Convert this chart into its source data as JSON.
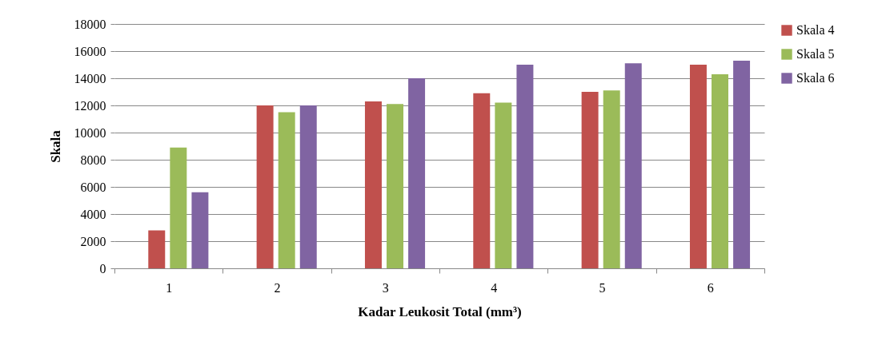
{
  "chart_data": {
    "type": "bar",
    "xlabel": "Kadar Leukosit Total (mm³)",
    "ylabel": "Skala",
    "categories": [
      "1",
      "2",
      "3",
      "4",
      "5",
      "6"
    ],
    "series": [
      {
        "name": "Skala 4",
        "color": "#c0504d",
        "values": [
          2800,
          12000,
          12300,
          12900,
          13000,
          15000
        ]
      },
      {
        "name": "Skala 5",
        "color": "#9bbb59",
        "values": [
          8900,
          11500,
          12100,
          12200,
          13100,
          14300
        ]
      },
      {
        "name": "Skala 6",
        "color": "#8064a2",
        "values": [
          5600,
          12000,
          14000,
          15000,
          15100,
          15300
        ]
      }
    ],
    "ylim": [
      0,
      18000
    ],
    "yticks": [
      0,
      2000,
      4000,
      6000,
      8000,
      10000,
      12000,
      14000,
      16000,
      18000
    ],
    "grid": "y",
    "legend": "right"
  }
}
